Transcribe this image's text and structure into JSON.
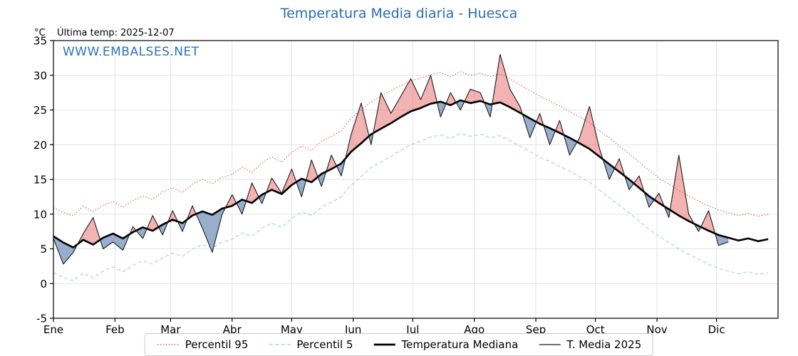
{
  "header": {
    "title": "Temperatura Media diaria - Huesca",
    "y_unit": "°C",
    "last_temp": "Última temp: 2025-12-07",
    "watermark": "WWW.EMBALSES.NET"
  },
  "colors": {
    "title": "#2a6cb0",
    "watermark": "#2d74b8",
    "grid": "#e3e3ea",
    "spine": "#000000",
    "p95_line": "#e05c5c",
    "p5_line": "#a6d4e8",
    "median_line": "#000000",
    "t2025_line": "#1a1a1a",
    "fill_above": "rgba(228,75,75,0.42)",
    "fill_below": "rgba(82,122,172,0.60)"
  },
  "chart_data": {
    "type": "line",
    "title": "Temperatura Media diaria - Huesca",
    "xlabel": "",
    "ylabel": "°C",
    "ylim": [
      -5,
      35
    ],
    "yticks": [
      -5,
      0,
      5,
      10,
      15,
      20,
      25,
      30,
      35
    ],
    "grid": true,
    "legend_position": "bottom",
    "x_unit": "day_of_year",
    "x_total_days": 365,
    "x_start": 0,
    "x_step_days": 5,
    "month_labels": [
      "Ene",
      "Feb",
      "Mar",
      "Abr",
      "May",
      "Jun",
      "Jul",
      "Ago",
      "Sep",
      "Oct",
      "Nov",
      "Dic"
    ],
    "month_start_days": [
      0,
      31,
      59,
      90,
      120,
      151,
      181,
      212,
      243,
      273,
      304,
      334
    ],
    "fill_rule": "red where T. Media 2025 above Temperatura Mediana, blue where below",
    "series": [
      {
        "name": "Percentil 95",
        "style": "dotted",
        "values": [
          10.9,
          10.2,
          9.8,
          11.1,
          10.4,
          11.3,
          11.8,
          11.0,
          12.0,
          12.6,
          12.1,
          13.2,
          13.8,
          13.1,
          14.3,
          15.0,
          14.4,
          15.3,
          15.7,
          16.8,
          16.0,
          17.4,
          18.2,
          17.5,
          18.9,
          19.8,
          19.2,
          20.5,
          21.2,
          22.0,
          23.8,
          25.0,
          26.2,
          27.0,
          27.8,
          28.5,
          29.2,
          29.6,
          30.1,
          30.4,
          29.8,
          30.5,
          30.0,
          30.3,
          29.8,
          30.2,
          29.5,
          28.6,
          27.8,
          27.0,
          26.3,
          25.6,
          24.8,
          24.0,
          23.2,
          22.0,
          21.0,
          19.8,
          18.7,
          17.5,
          16.3,
          15.2,
          14.3,
          13.4,
          12.6,
          11.9,
          11.2,
          10.6,
          10.2,
          9.8,
          10.1,
          9.7,
          10.0
        ]
      },
      {
        "name": "Percentil 5",
        "style": "dashed",
        "values": [
          1.6,
          0.9,
          0.4,
          1.5,
          0.8,
          1.8,
          2.4,
          1.7,
          2.6,
          3.3,
          2.8,
          3.7,
          4.4,
          3.9,
          5.0,
          5.6,
          5.1,
          6.0,
          6.4,
          7.3,
          6.8,
          8.0,
          8.7,
          8.1,
          9.4,
          10.3,
          9.8,
          11.0,
          11.7,
          12.5,
          14.2,
          15.4,
          16.7,
          17.5,
          18.3,
          19.2,
          20.0,
          20.5,
          21.1,
          21.4,
          20.9,
          21.6,
          21.2,
          21.5,
          21.0,
          21.3,
          20.6,
          19.8,
          19.0,
          18.2,
          17.6,
          16.9,
          16.2,
          15.4,
          14.6,
          13.5,
          12.4,
          11.3,
          10.2,
          9.0,
          7.8,
          6.8,
          5.9,
          5.0,
          4.2,
          3.5,
          2.8,
          2.2,
          1.8,
          1.4,
          1.7,
          1.3,
          1.6
        ]
      },
      {
        "name": "Temperatura Mediana",
        "style": "solid-thick",
        "values": [
          6.8,
          5.9,
          5.2,
          6.3,
          5.6,
          6.6,
          7.2,
          6.5,
          7.4,
          8.1,
          7.6,
          8.5,
          9.2,
          8.7,
          9.8,
          10.4,
          9.9,
          10.8,
          11.2,
          12.1,
          11.6,
          12.8,
          13.5,
          12.9,
          14.2,
          15.1,
          14.6,
          15.8,
          16.5,
          17.3,
          19.0,
          20.2,
          21.5,
          22.3,
          23.1,
          24.0,
          24.8,
          25.3,
          25.9,
          26.2,
          25.7,
          26.4,
          26.0,
          26.3,
          25.8,
          26.1,
          25.4,
          24.6,
          23.8,
          23.0,
          22.4,
          21.7,
          21.0,
          20.2,
          19.4,
          18.3,
          17.2,
          16.1,
          15.0,
          13.8,
          12.6,
          11.6,
          10.7,
          9.8,
          9.0,
          8.3,
          7.6,
          7.0,
          6.6,
          6.2,
          6.5,
          6.1,
          6.4
        ]
      },
      {
        "name": "T. Media 2025",
        "style": "solid-thin",
        "values": [
          6.5,
          2.8,
          4.5,
          7.2,
          9.5,
          5.0,
          6.0,
          4.8,
          8.2,
          6.5,
          9.8,
          7.0,
          10.5,
          7.5,
          11.2,
          8.0,
          4.5,
          10.0,
          12.8,
          10.0,
          14.5,
          11.5,
          15.2,
          13.0,
          16.5,
          12.5,
          17.8,
          14.0,
          18.5,
          15.5,
          21.5,
          26.0,
          20.0,
          27.5,
          24.5,
          27.0,
          29.5,
          26.5,
          30.0,
          24.0,
          27.5,
          25.0,
          28.0,
          27.5,
          24.0,
          33.0,
          28.0,
          25.5,
          21.0,
          24.5,
          20.0,
          23.5,
          18.5,
          21.0,
          25.5,
          19.5,
          15.0,
          18.0,
          13.5,
          15.5,
          11.0,
          13.0,
          9.5,
          18.5,
          10.0,
          7.5,
          10.5,
          5.5,
          6.0
        ]
      }
    ]
  },
  "legend": {
    "items": [
      "Percentil 95",
      "Percentil 5",
      "Temperatura Mediana",
      "T. Media 2025"
    ]
  }
}
